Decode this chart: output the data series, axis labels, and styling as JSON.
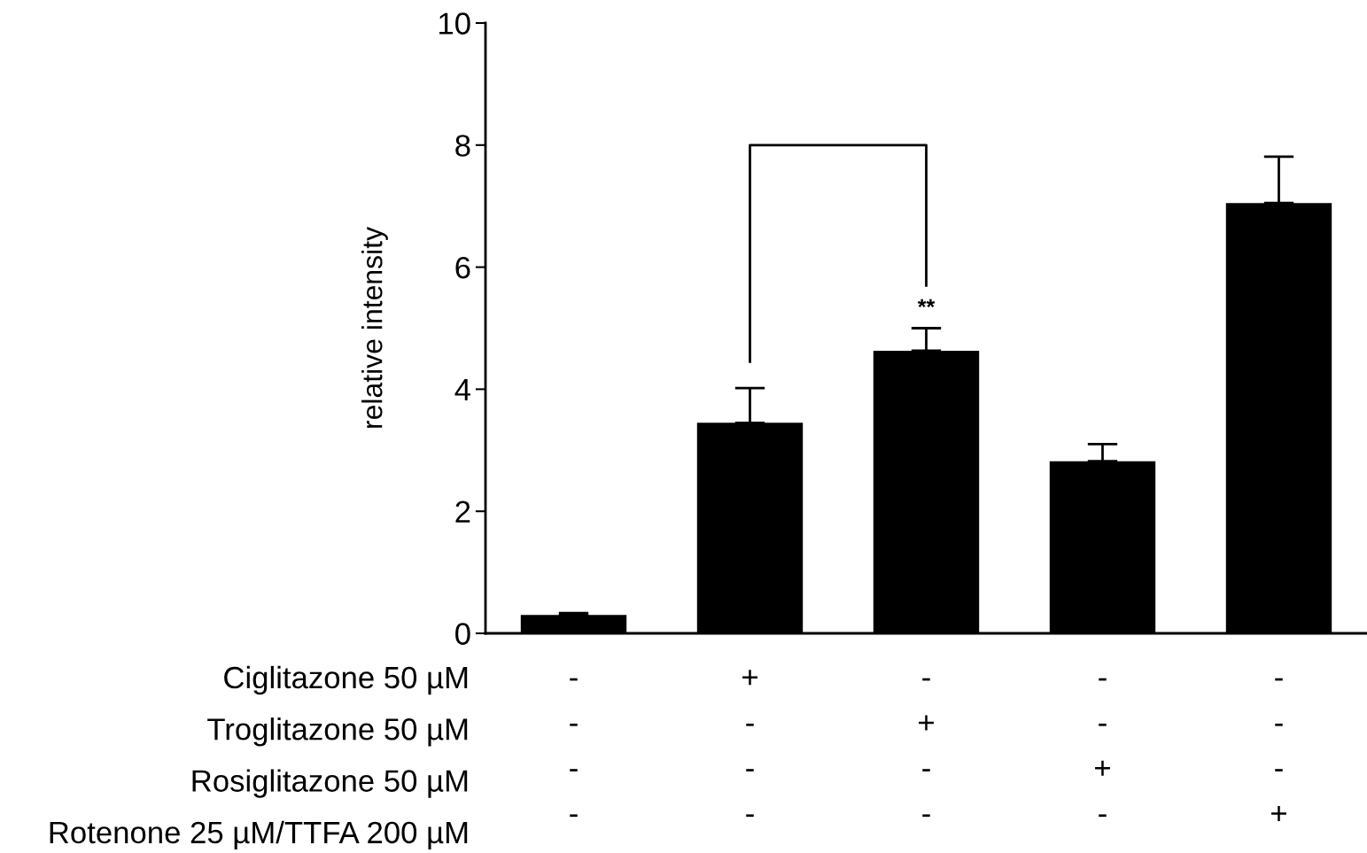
{
  "chart_data": {
    "type": "bar",
    "ylabel": "relative intensity",
    "categories": [
      "-\n-\n-\n-",
      "+\n-\n-\n-",
      "-\n+\n-\n-",
      "-\n-\n+\n-",
      "-\n-\n-\n+"
    ],
    "values": [
      0.3,
      3.45,
      4.63,
      2.82,
      7.05
    ],
    "color": "#000000",
    "errors": [
      [
        0.3,
        0.33
      ],
      [
        3.45,
        4.02
      ],
      [
        4.63,
        5.0
      ],
      [
        2.82,
        3.1
      ],
      [
        7.05,
        7.81
      ]
    ],
    "ylim": [
      0,
      10
    ],
    "yticks": [
      0,
      2,
      4,
      6,
      8,
      10
    ],
    "grid": false,
    "legend": false,
    "annotations": [
      "Ciglitazone 50 µM",
      "Troglitazone 50 µM",
      "Rosiglitazone 50 µM",
      "Rotenone 25 µM/TTFA 200 µM",
      "**"
    ]
  }
}
